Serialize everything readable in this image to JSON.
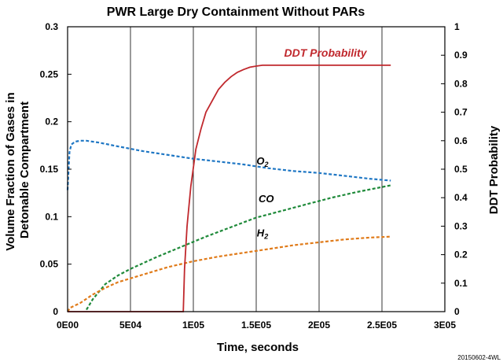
{
  "chart_data": {
    "type": "line",
    "title": "PWR Large Dry Containment Without PARs",
    "xlabel": "Time, seconds",
    "ylabel_left_lines": [
      "Volume Fraction of Gases in",
      "Detonable Compartment"
    ],
    "ylabel_right": "DDT Probability",
    "xlim": [
      0,
      300000
    ],
    "ylim_left": [
      0,
      0.3
    ],
    "ylim_right": [
      0,
      1
    ],
    "x_ticks": [
      0,
      50000,
      100000,
      150000,
      200000,
      250000,
      300000
    ],
    "x_tick_labels": [
      "0E00",
      "5E04",
      "1E05",
      "1.5E05",
      "2E05",
      "2.5E05",
      "3E05"
    ],
    "y_left_ticks": [
      0,
      0.05,
      0.1,
      0.15,
      0.2,
      0.25,
      0.3
    ],
    "y_left_tick_labels": [
      "0",
      "0.05",
      "0.1",
      "0.15",
      "0.2",
      "0.25",
      "0.3"
    ],
    "y_right_ticks": [
      0,
      0.1,
      0.2,
      0.3,
      0.4,
      0.5,
      0.6,
      0.7,
      0.8,
      0.9,
      1
    ],
    "y_right_tick_labels": [
      "0",
      "0.1",
      "0.2",
      "0.3",
      "0.4",
      "0.5",
      "0.6",
      "0.7",
      "0.8",
      "0.9",
      "1"
    ],
    "grid": "vertical",
    "series": [
      {
        "name": "O2",
        "axis": "left",
        "color": "#1f77c4",
        "dash": "dashed",
        "x": [
          0,
          1500,
          3000,
          6000,
          10000,
          15000,
          25000,
          40000,
          60000,
          80000,
          100000,
          120000,
          140000,
          160000,
          180000,
          200000,
          220000,
          240000,
          257000
        ],
        "y": [
          0.128,
          0.168,
          0.176,
          0.179,
          0.18,
          0.18,
          0.178,
          0.174,
          0.169,
          0.165,
          0.161,
          0.158,
          0.155,
          0.151,
          0.148,
          0.146,
          0.143,
          0.14,
          0.138
        ]
      },
      {
        "name": "CO",
        "axis": "left",
        "color": "#1f8a3a",
        "dash": "dashed",
        "x": [
          15000,
          20000,
          30000,
          40000,
          50000,
          70000,
          90000,
          110000,
          130000,
          150000,
          170000,
          190000,
          210000,
          230000,
          257000
        ],
        "y": [
          0.002,
          0.013,
          0.029,
          0.038,
          0.045,
          0.057,
          0.068,
          0.079,
          0.089,
          0.099,
          0.106,
          0.113,
          0.12,
          0.126,
          0.133
        ]
      },
      {
        "name": "H2",
        "axis": "left",
        "color": "#e07b1a",
        "dash": "dashed",
        "x": [
          0,
          2000,
          5000,
          10000,
          20000,
          30000,
          40000,
          60000,
          80000,
          100000,
          120000,
          140000,
          160000,
          180000,
          200000,
          220000,
          240000,
          257000
        ],
        "y": [
          0.0,
          0.004,
          0.006,
          0.009,
          0.018,
          0.025,
          0.031,
          0.039,
          0.047,
          0.053,
          0.058,
          0.062,
          0.066,
          0.07,
          0.073,
          0.076,
          0.078,
          0.079
        ]
      },
      {
        "name": "DDT Probability",
        "axis": "right",
        "color": "#c0282d",
        "dash": "solid",
        "x": [
          0,
          92000,
          93000,
          95000,
          98000,
          102000,
          106000,
          110000,
          115000,
          120000,
          125000,
          130000,
          135000,
          140000,
          145000,
          150000,
          155000,
          200000,
          257000
        ],
        "y": [
          0,
          0,
          0.15,
          0.3,
          0.44,
          0.57,
          0.64,
          0.7,
          0.74,
          0.78,
          0.805,
          0.825,
          0.84,
          0.85,
          0.858,
          0.862,
          0.865,
          0.865,
          0.865
        ]
      }
    ],
    "annotations": [
      {
        "text": "DDT Probability",
        "style": "ddt",
        "x": 205000,
        "y_right": 0.895
      },
      {
        "text": "O",
        "sub": "2",
        "x": 155000,
        "y_left": 0.155
      },
      {
        "text": "CO",
        "sub": "",
        "x": 158000,
        "y_left": 0.115
      },
      {
        "text": "H",
        "sub": "2",
        "x": 155000,
        "y_left": 0.079
      }
    ],
    "footnote": "20150602-4WL"
  }
}
